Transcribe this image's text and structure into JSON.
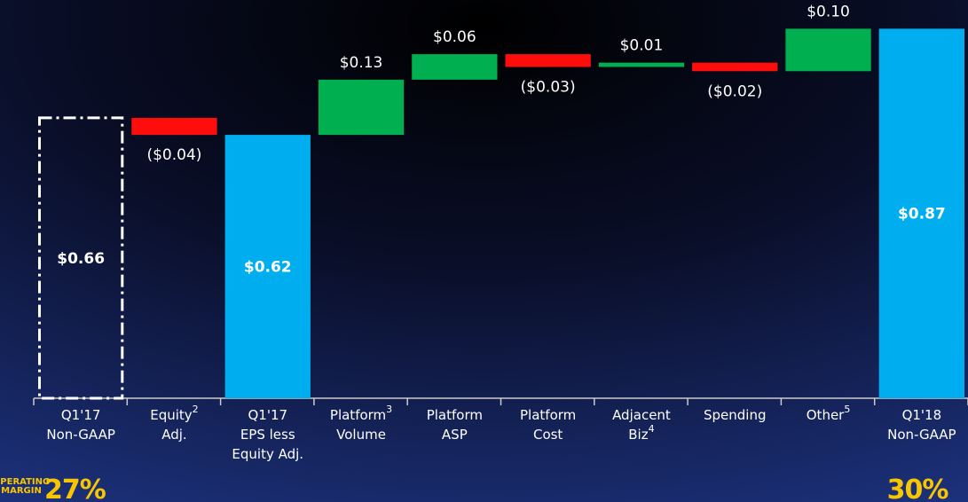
{
  "chart_data": {
    "type": "waterfall",
    "categories": [
      [
        "Q1'17",
        "Non-GAAP"
      ],
      [
        {
          "text": "Equity",
          "note": "2"
        },
        "Adj."
      ],
      [
        "Q1'17",
        "EPS less",
        "Equity Adj."
      ],
      [
        {
          "text": "Platform",
          "note": "3"
        },
        "Volume"
      ],
      [
        "Platform",
        "ASP"
      ],
      [
        "Platform",
        "Cost"
      ],
      [
        "Adjacent",
        {
          "text": "Biz",
          "note": "4"
        }
      ],
      [
        "Spending"
      ],
      [
        {
          "text": "Other",
          "note": "5"
        }
      ],
      [
        "Q1'18",
        "Non-GAAP"
      ]
    ],
    "values": [
      0.66,
      -0.04,
      0.62,
      0.13,
      0.06,
      -0.03,
      0.01,
      -0.02,
      0.1,
      0.87
    ],
    "value_labels": [
      "$0.66",
      "($0.04)",
      "$0.62",
      "$0.13",
      "$0.06",
      "($0.03)",
      "$0.01",
      "($0.02)",
      "$0.10",
      "$0.87"
    ],
    "kinds": [
      "total",
      "delta",
      "total",
      "delta",
      "delta",
      "delta",
      "delta",
      "delta",
      "delta",
      "total"
    ],
    "colors": [
      "none",
      "#ff0d0d",
      "#00aeef",
      "#00b050",
      "#00b050",
      "#ff0d0d",
      "#00b050",
      "#ff0d0d",
      "#00b050",
      "#00aeef"
    ],
    "ylim": [
      0,
      0.9
    ],
    "margin": {
      "label": [
        "OPERATING",
        "MARGIN"
      ],
      "start": "27%",
      "end": "30%",
      "color": "#f7c600"
    }
  }
}
